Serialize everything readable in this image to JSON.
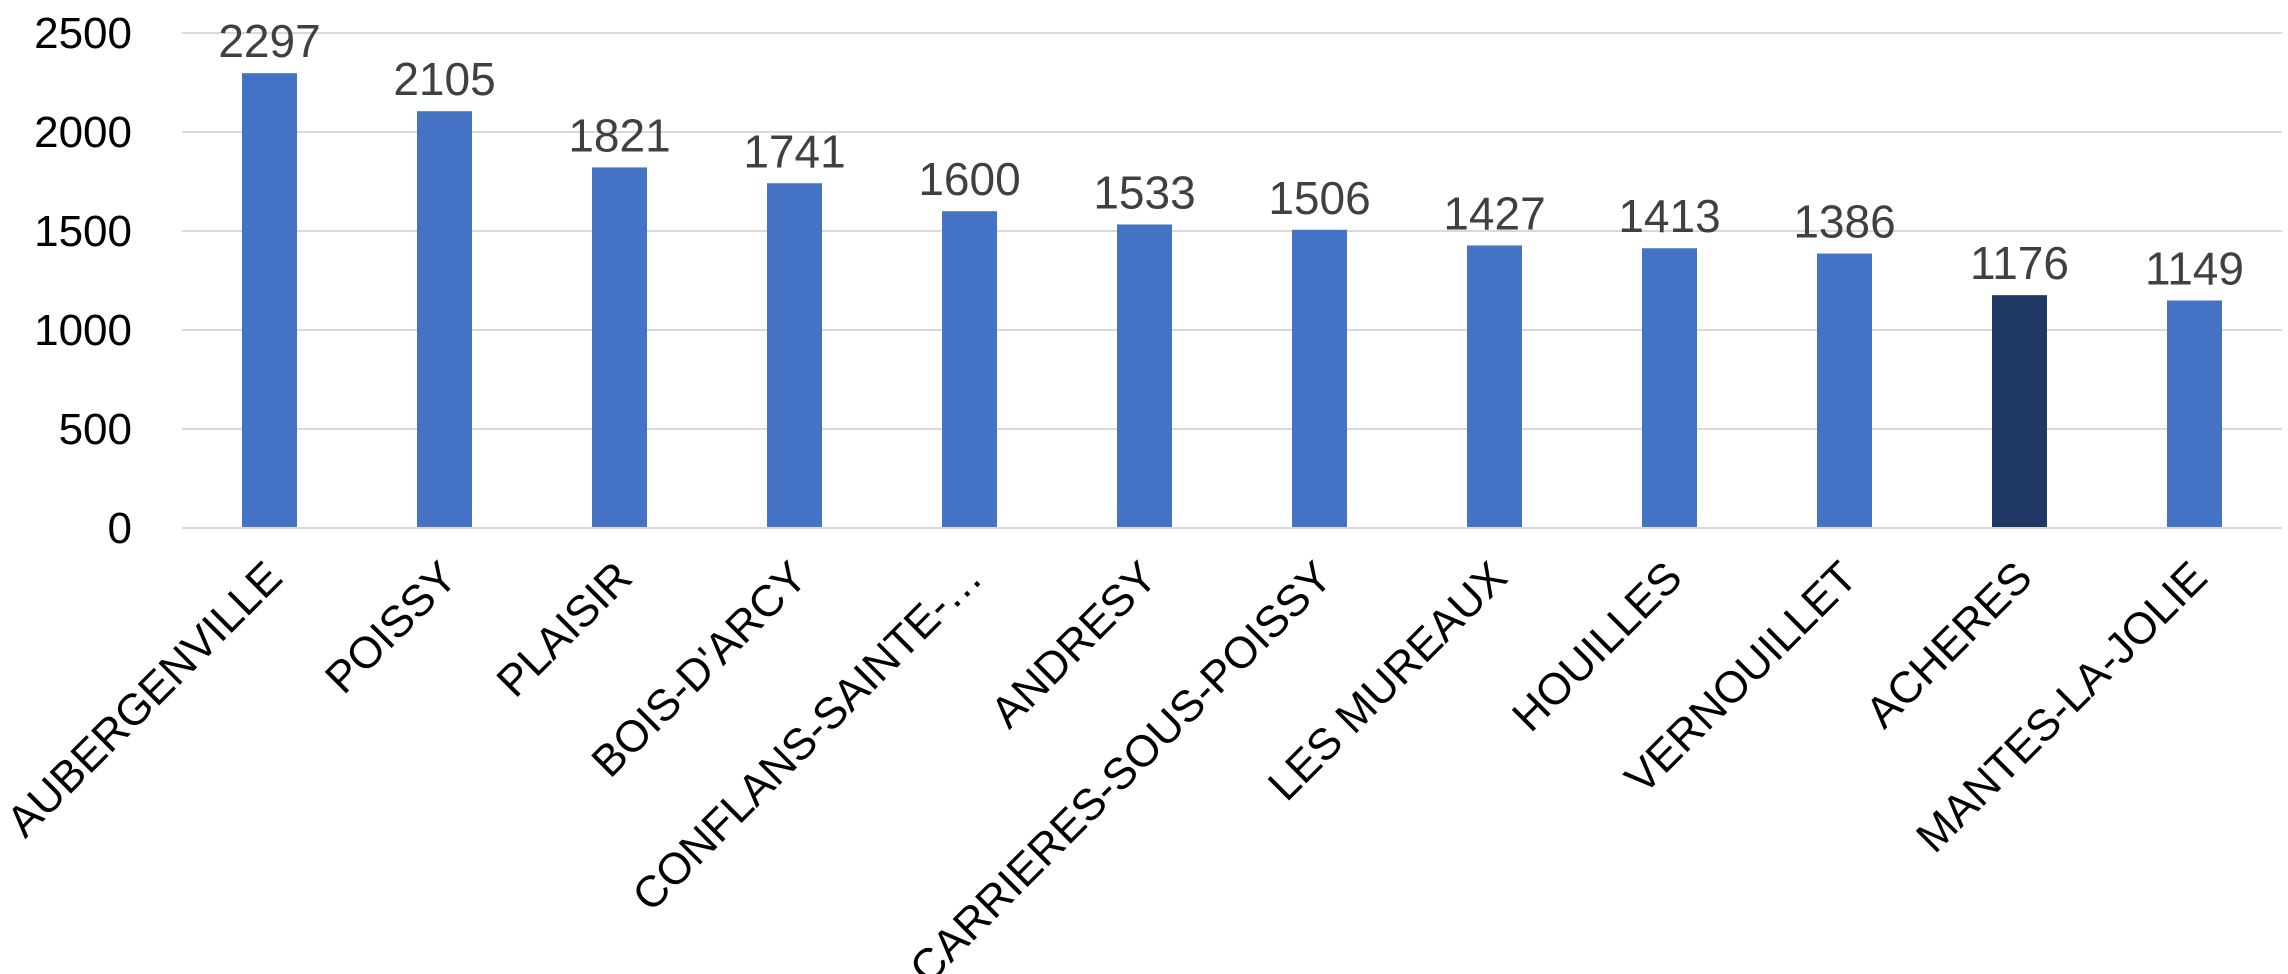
{
  "chart_data": {
    "type": "bar",
    "categories": [
      "AUBERGENVILLE",
      "POISSY",
      "PLAISIR",
      "BOIS-D'ARCY",
      "CONFLANS-SAINTE-…",
      "ANDRESY",
      "CARRIERES-SOUS-POISSY",
      "LES MUREAUX",
      "HOUILLES",
      "VERNOUILLET",
      "ACHERES",
      "MANTES-LA-JOLIE"
    ],
    "values": [
      2297,
      2105,
      1821,
      1741,
      1600,
      1533,
      1506,
      1427,
      1413,
      1386,
      1176,
      1149
    ],
    "data_labels": [
      "2297",
      "2105",
      "1821",
      "1741",
      "1600",
      "1533",
      "1506",
      "1427",
      "1413",
      "1386",
      "1176",
      "1149"
    ],
    "highlighted_index": 10,
    "title": "",
    "xlabel": "",
    "ylabel": "",
    "ylim": [
      0,
      2500
    ],
    "yticks": [
      0,
      500,
      1000,
      1500,
      2000,
      2500
    ],
    "ytick_labels": [
      "0",
      "500",
      "1000",
      "1500",
      "2000",
      "2500"
    ],
    "grid": true,
    "legend": "none",
    "colors": {
      "bar": "#4472c4",
      "highlight": "#203864",
      "grid": "#d9d9d9",
      "data_label": "#404040",
      "tick_label": "#000000"
    }
  }
}
